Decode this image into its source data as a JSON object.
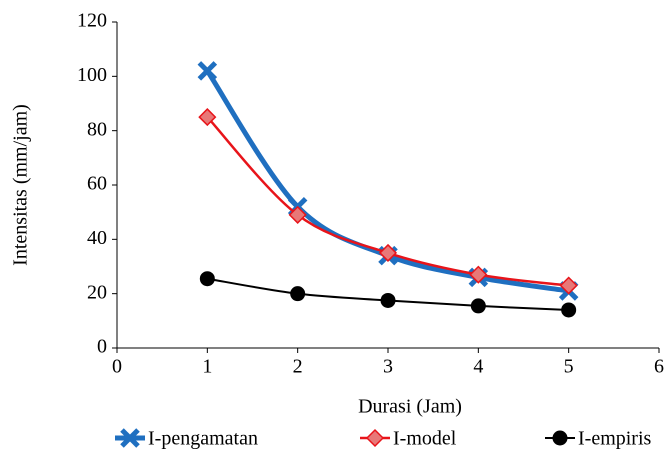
{
  "chart_data": {
    "type": "line",
    "x_label": "Durasi (Jam)",
    "y_label": "Intensitas (mm/jam)",
    "x": [
      1,
      2,
      3,
      4,
      5
    ],
    "series": [
      {
        "name": "I-pengamatan",
        "color": "#1f6fc0",
        "marker": "x",
        "values": [
          102,
          52,
          34,
          26,
          21
        ]
      },
      {
        "name": "I-model",
        "color": "#e8141a",
        "marker": "diamond",
        "values": [
          85,
          49,
          35,
          27,
          23
        ]
      },
      {
        "name": "I-empiris",
        "color": "#000000",
        "marker": "circle",
        "values": [
          25.5,
          20,
          17.5,
          15.5,
          14
        ]
      }
    ],
    "xlim": [
      0,
      6
    ],
    "xticks": [
      0,
      1,
      2,
      3,
      4,
      5,
      6
    ],
    "ylim": [
      0,
      120
    ],
    "yticks": [
      0,
      20,
      40,
      60,
      80,
      100,
      120
    ],
    "smooth": true,
    "grid": false,
    "legend": "bottom"
  }
}
